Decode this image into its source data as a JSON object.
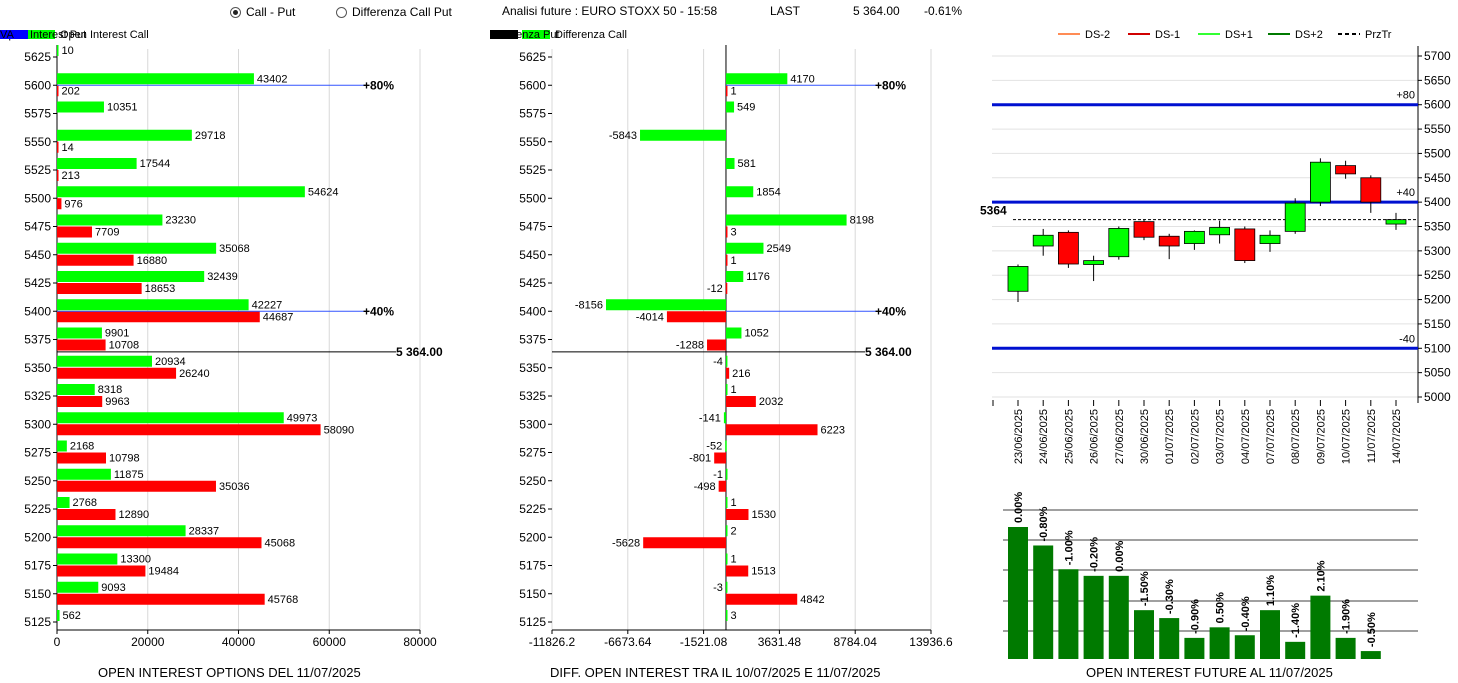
{
  "header": {
    "radio_call_put": "Call - Put",
    "radio_diff": "Differenza Call Put",
    "title": "Analisi future : EURO STOXX 50 - 15:58",
    "last_label": "LAST",
    "last_value": "5 364.00",
    "change": "-0.61%"
  },
  "colors": {
    "call": "#00ff00",
    "put": "#ff0000",
    "prztr": "#000000",
    "va": "#0000ff",
    "future": "#007a00"
  },
  "legend1": [
    "Open Interest Call",
    "Open Interest Put",
    "PrzTr",
    "VA"
  ],
  "legend2": [
    "Differenza Call",
    "Differenza Put",
    "PrzTr"
  ],
  "legend3": [
    "DS-2",
    "DS-1",
    "DS+1",
    "DS+2",
    "PrzTr"
  ],
  "chart_data": [
    {
      "type": "bar",
      "title": "OPEN INTEREST OPTIONS DEL 11/07/2025",
      "orientation": "horizontal",
      "categories": [
        5625,
        5600,
        5575,
        5550,
        5525,
        5500,
        5475,
        5450,
        5425,
        5400,
        5375,
        5350,
        5325,
        5300,
        5275,
        5250,
        5225,
        5200,
        5175,
        5150,
        5125
      ],
      "series": [
        {
          "name": "Open Interest Call",
          "values": [
            10,
            43402,
            10351,
            29718,
            17544,
            54624,
            23230,
            35068,
            32439,
            42227,
            9901,
            20934,
            8318,
            49973,
            2168,
            11875,
            2768,
            28337,
            13300,
            9093,
            562
          ]
        },
        {
          "name": "Open Interest Put",
          "values": [
            null,
            202,
            null,
            14,
            213,
            976,
            7709,
            16880,
            18653,
            44687,
            10708,
            26240,
            9963,
            58090,
            10798,
            35036,
            12890,
            45068,
            19484,
            45768,
            null
          ]
        }
      ],
      "xlim": [
        0,
        80000
      ],
      "xticks": [
        "0",
        "20000",
        "40000",
        "60000",
        "80000"
      ],
      "hlines": [
        {
          "y": 5600,
          "label": "+80%"
        },
        {
          "y": 5400,
          "label": "+40%"
        }
      ],
      "price_line": {
        "y": 5364,
        "label": "5 364.00"
      }
    },
    {
      "type": "bar",
      "title": "DIFF. OPEN INTEREST TRA IL 10/07/2025 E 11/07/2025",
      "orientation": "horizontal",
      "categories": [
        5625,
        5600,
        5575,
        5550,
        5525,
        5500,
        5475,
        5450,
        5425,
        5400,
        5375,
        5350,
        5325,
        5300,
        5275,
        5250,
        5225,
        5200,
        5175,
        5150,
        5125
      ],
      "series": [
        {
          "name": "Differenza Call",
          "values": [
            null,
            4170,
            549,
            -5843,
            581,
            1854,
            8198,
            2549,
            1176,
            -8156,
            1052,
            -4,
            1,
            -141,
            -52,
            -1,
            1,
            2,
            1,
            -3,
            3
          ]
        },
        {
          "name": "Differenza Put",
          "values": [
            null,
            1,
            null,
            null,
            null,
            null,
            3,
            1,
            -12,
            -4014,
            -1288,
            216,
            2032,
            6223,
            -801,
            -498,
            1530,
            -5628,
            1513,
            4842,
            null
          ]
        }
      ],
      "xlim": [
        -11826.2,
        13936.6
      ],
      "xticks": [
        "-11826.2",
        "-6673.64",
        "-1521.08",
        "3631.48",
        "8784.04",
        "13936.6"
      ],
      "hlines": [
        {
          "y": 5600,
          "label": "+80%"
        },
        {
          "y": 5400,
          "label": "+40%"
        }
      ],
      "price_line": {
        "y": 5364,
        "label": "5 364.00"
      }
    },
    {
      "type": "candlestick",
      "dates": [
        "23/06/2025",
        "24/06/2025",
        "25/06/2025",
        "26/06/2025",
        "27/06/2025",
        "30/06/2025",
        "01/07/2025",
        "02/07/2025",
        "03/07/2025",
        "04/07/2025",
        "07/07/2025",
        "08/07/2025",
        "09/07/2025",
        "10/07/2025",
        "11/07/2025",
        "14/07/2025"
      ],
      "ohlc": [
        [
          5217,
          5272,
          5195,
          5268
        ],
        [
          5310,
          5345,
          5290,
          5332
        ],
        [
          5338,
          5342,
          5265,
          5273
        ],
        [
          5272,
          5290,
          5238,
          5280
        ],
        [
          5288,
          5350,
          5282,
          5346
        ],
        [
          5360,
          5365,
          5322,
          5328
        ],
        [
          5330,
          5335,
          5283,
          5310
        ],
        [
          5315,
          5342,
          5302,
          5340
        ],
        [
          5333,
          5362,
          5315,
          5348
        ],
        [
          5345,
          5350,
          5275,
          5280
        ],
        [
          5315,
          5342,
          5298,
          5332
        ],
        [
          5340,
          5408,
          5335,
          5398
        ],
        [
          5400,
          5490,
          5392,
          5482
        ],
        [
          5475,
          5485,
          5448,
          5458
        ],
        [
          5450,
          5455,
          5378,
          5400
        ],
        [
          5355,
          5378,
          5343,
          5364
        ]
      ],
      "ylim": [
        5000,
        5700
      ],
      "yticks": [
        "5000",
        "5050",
        "5100",
        "5150",
        "5200",
        "5250",
        "5300",
        "5350",
        "5400",
        "5450",
        "5500",
        "5550",
        "5600",
        "5650",
        "5700"
      ],
      "levels": [
        {
          "y": 5600,
          "label": "+80"
        },
        {
          "y": 5400,
          "label": "+40"
        },
        {
          "y": 5100,
          "label": "-40"
        }
      ],
      "price": {
        "y": 5364,
        "label": "5364"
      }
    },
    {
      "type": "bar",
      "title": "OPEN INTEREST FUTURE AL 11/07/2025",
      "values": [
        100,
        86,
        68,
        63,
        63,
        37,
        31,
        16,
        24,
        18,
        37,
        13,
        48,
        16,
        6
      ],
      "labels": [
        "0.00%",
        "-0.80%",
        "-1.00%",
        "-0.20%",
        "0.00%",
        "-1.50%",
        "-0.30%",
        "-0.90%",
        "0.50%",
        "-0.40%",
        "1.10%",
        "-1.40%",
        "2.10%",
        "-1.90%",
        "-0.50%"
      ]
    }
  ]
}
